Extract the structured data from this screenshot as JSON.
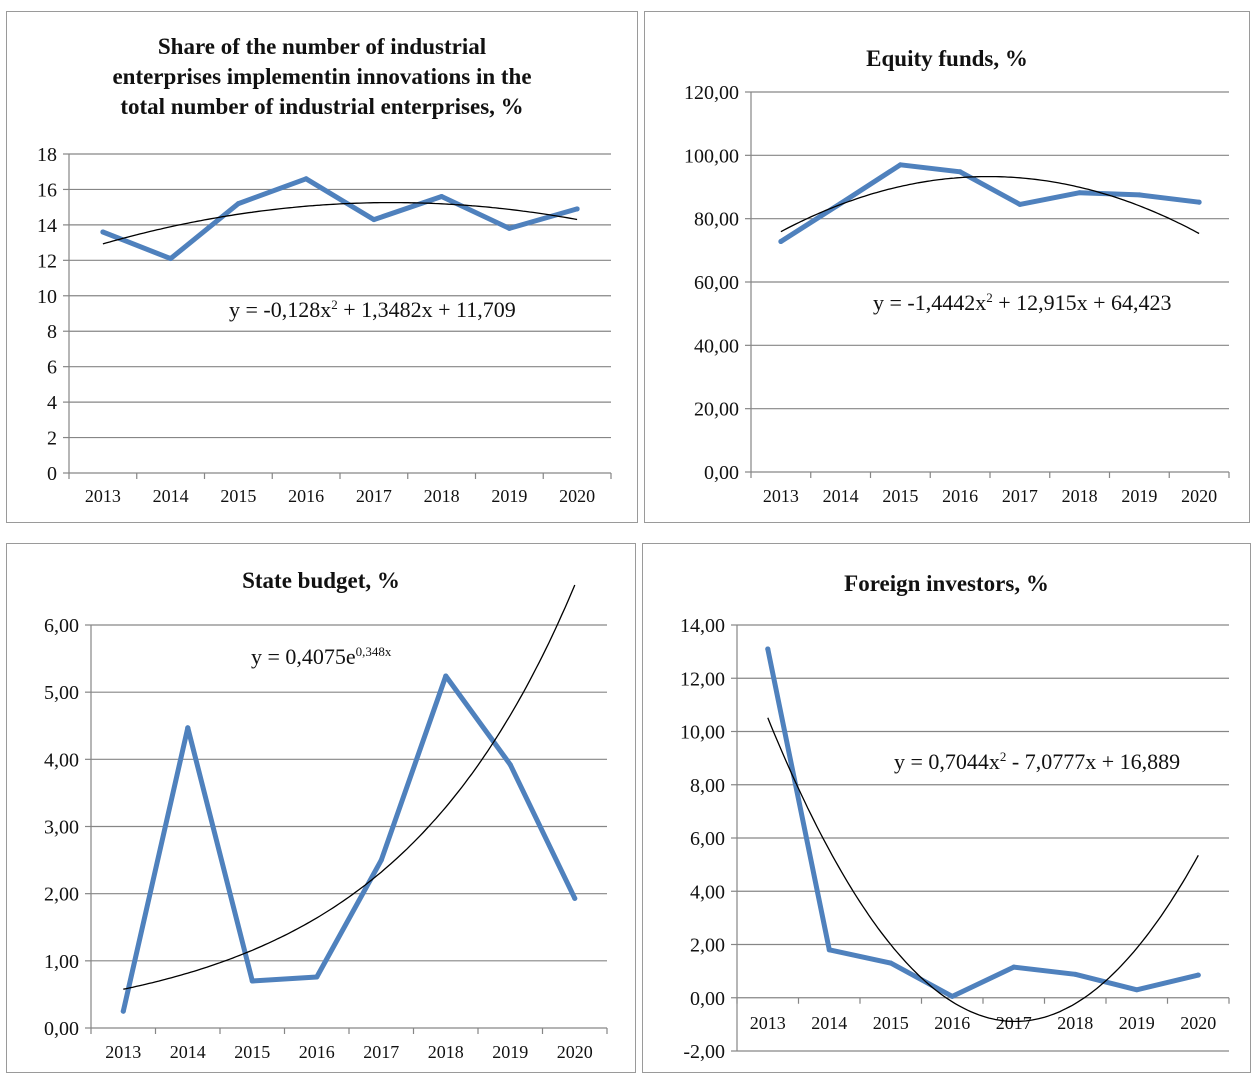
{
  "colors": {
    "series": "#4f81bd",
    "trend": "#000000",
    "grid": "#868686",
    "axis": "#868686"
  },
  "chart_data": [
    {
      "type": "line",
      "title_lines": [
        "Share of the number of industrial",
        "enterprises implementin innovations in the",
        "total number of industrial enterprises, %"
      ],
      "categories": [
        "2013",
        "2014",
        "2015",
        "2016",
        "2017",
        "2018",
        "2019",
        "2020"
      ],
      "series": [
        {
          "values": [
            13.6,
            12.1,
            15.2,
            16.6,
            14.3,
            15.6,
            13.8,
            14.9
          ]
        }
      ],
      "trendline": {
        "model": "poly2",
        "coefficients": [
          -0.128,
          1.3482,
          11.709
        ]
      },
      "equation": {
        "base": "y = -0,128x",
        "sup": "2",
        "rest": " + 1,3482x + 11,709"
      },
      "yticks": [
        "0",
        "2",
        "4",
        "6",
        "8",
        "10",
        "12",
        "14",
        "16",
        "18"
      ],
      "ylim": [
        0,
        18
      ],
      "grid": true
    },
    {
      "type": "line",
      "title_lines": [
        "Equity funds, %"
      ],
      "categories": [
        "2013",
        "2014",
        "2015",
        "2016",
        "2017",
        "2018",
        "2019",
        "2020"
      ],
      "series": [
        {
          "values": [
            72.8,
            84.8,
            97.0,
            94.8,
            84.5,
            88.2,
            87.5,
            85.2
          ]
        }
      ],
      "trendline": {
        "model": "poly2",
        "coefficients": [
          -1.4442,
          12.915,
          64.423
        ]
      },
      "equation": {
        "base": "y = -1,4442x",
        "sup": "2",
        "rest": " + 12,915x + 64,423"
      },
      "yticks": [
        "0,00",
        "20,00",
        "40,00",
        "60,00",
        "80,00",
        "100,00",
        "120,00"
      ],
      "ylim": [
        0,
        120
      ],
      "grid": true
    },
    {
      "type": "line",
      "title_lines": [
        "State budget, %"
      ],
      "categories": [
        "2013",
        "2014",
        "2015",
        "2016",
        "2017",
        "2018",
        "2019",
        "2020"
      ],
      "series": [
        {
          "values": [
            0.25,
            4.47,
            0.7,
            0.76,
            2.5,
            5.24,
            3.92,
            1.93
          ]
        }
      ],
      "trendline": {
        "model": "exp",
        "coefficients": [
          0.4075,
          0.348
        ]
      },
      "equation": {
        "base": "y = 0,4075e",
        "sup": "0,348x",
        "rest": ""
      },
      "yticks": [
        "0,00",
        "1,00",
        "2,00",
        "3,00",
        "4,00",
        "5,00",
        "6,00"
      ],
      "ylim": [
        0,
        6
      ],
      "grid": true
    },
    {
      "type": "line",
      "title_lines": [
        "Foreign investors, %"
      ],
      "categories": [
        "2013",
        "2014",
        "2015",
        "2016",
        "2017",
        "2018",
        "2019",
        "2020"
      ],
      "series": [
        {
          "values": [
            13.1,
            1.8,
            1.3,
            0.05,
            1.15,
            0.88,
            0.3,
            0.85
          ]
        }
      ],
      "trendline": {
        "model": "poly2",
        "coefficients": [
          0.7044,
          -7.0777,
          16.889
        ]
      },
      "equation": {
        "base": "y = 0,7044x",
        "sup": "2",
        "rest": " - 7,0777x + 16,889"
      },
      "yticks": [
        "-2,00",
        "0,00",
        "2,00",
        "4,00",
        "6,00",
        "8,00",
        "10,00",
        "12,00",
        "14,00"
      ],
      "ylim": [
        -2,
        14
      ],
      "grid": true
    }
  ]
}
